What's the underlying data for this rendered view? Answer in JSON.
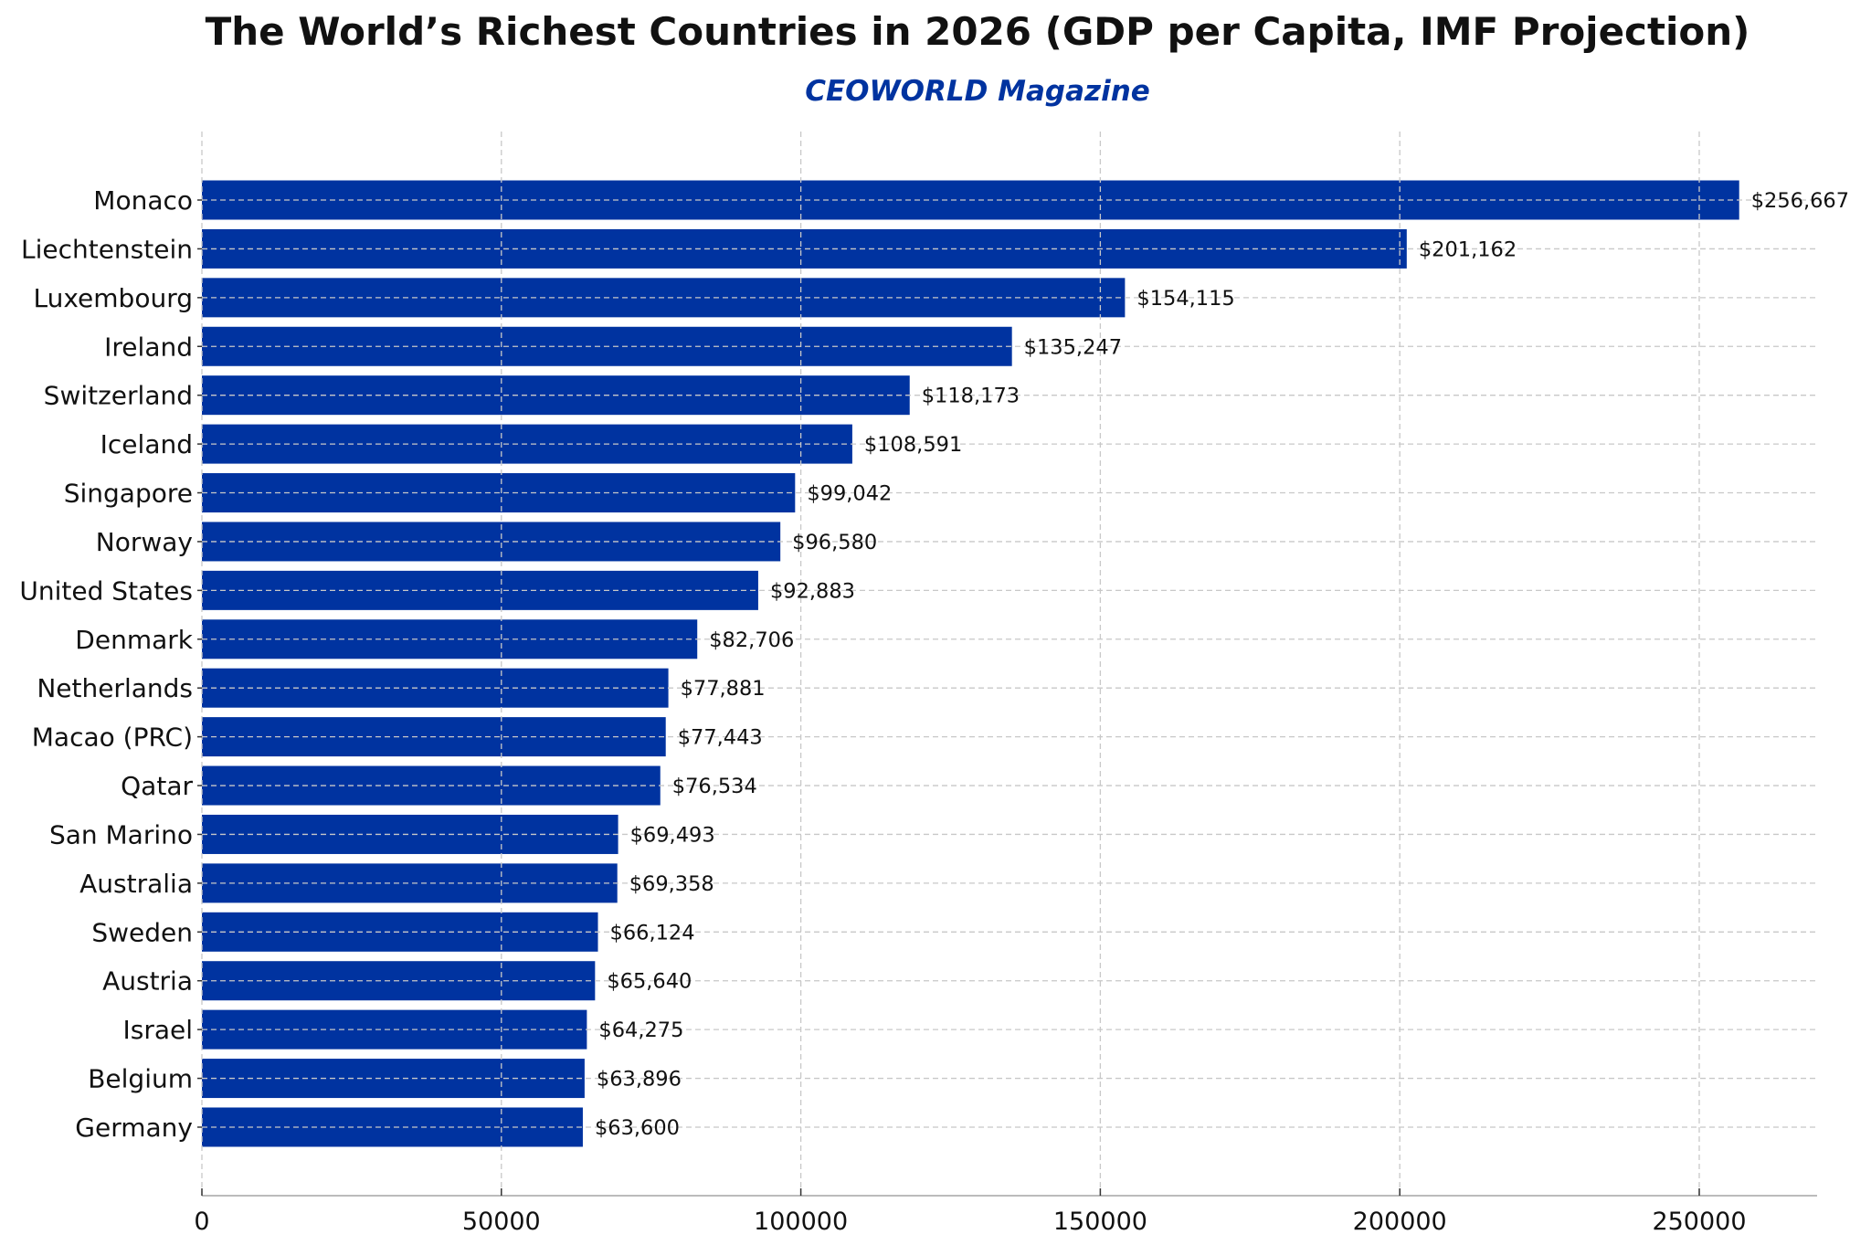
{
  "chart_data": {
    "type": "bar",
    "orientation": "horizontal",
    "title": "The World’s Richest Countries in 2026 (GDP per Capita, IMF Projection)",
    "subtitle": "CEOWORLD Magazine",
    "xlabel": "",
    "ylabel": "",
    "xlim": [
      0,
      270000
    ],
    "x_ticks": [
      "0",
      "50000",
      "100000",
      "150000",
      "200000",
      "250000"
    ],
    "grid": true,
    "bar_color": "#0033a0",
    "subtitle_color": "#0033a0",
    "categories": [
      "Monaco",
      "Liechtenstein",
      "Luxembourg",
      "Ireland",
      "Switzerland",
      "Iceland",
      "Singapore",
      "Norway",
      "United States",
      "Denmark",
      "Netherlands",
      "Macao (PRC)",
      "Qatar",
      "San Marino",
      "Australia",
      "Sweden",
      "Austria",
      "Israel",
      "Belgium",
      "Germany"
    ],
    "values": [
      256667,
      201162,
      154115,
      135247,
      118173,
      108591,
      99042,
      96580,
      92883,
      82706,
      77881,
      77443,
      76534,
      69493,
      69358,
      66124,
      65640,
      64275,
      63896,
      63600
    ],
    "data_labels": [
      "$256,667",
      "$201,162",
      "$154,115",
      "$135,247",
      "$118,173",
      "$108,591",
      "$99,042",
      "$96,580",
      "$92,883",
      "$82,706",
      "$77,881",
      "$77,443",
      "$76,534",
      "$69,493",
      "$69,358",
      "$66,124",
      "$65,640",
      "$64,275",
      "$63,896",
      "$63,600"
    ]
  }
}
